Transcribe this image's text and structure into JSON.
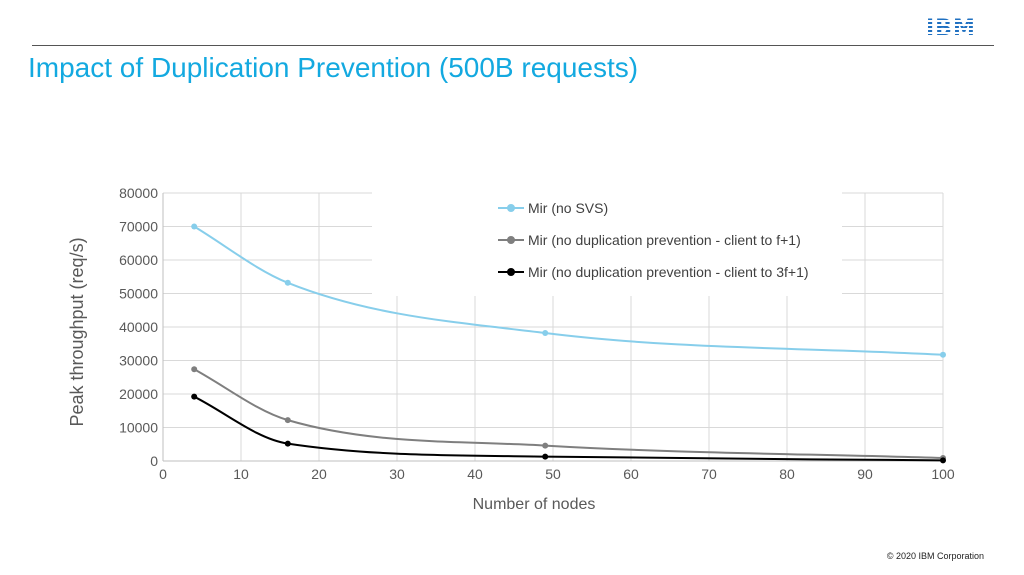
{
  "header": {
    "logo_text": "IBM",
    "title": "Impact of Duplication Prevention (500B requests)"
  },
  "footer": {
    "copyright": "© 2020 IBM Corporation"
  },
  "colors": {
    "title": "#13a9e0",
    "logo": "#1f70c1"
  },
  "chart_data": {
    "type": "line",
    "title": "",
    "xlabel": "Number of nodes",
    "ylabel": "Peak throughput (req/s)",
    "xlim": [
      0,
      100
    ],
    "ylim": [
      0,
      80000
    ],
    "x_ticks": [
      0,
      10,
      20,
      30,
      40,
      50,
      60,
      70,
      80,
      90,
      100
    ],
    "y_ticks": [
      0,
      10000,
      20000,
      30000,
      40000,
      50000,
      60000,
      70000,
      80000
    ],
    "grid": true,
    "legend_position": "top-right",
    "smooth": true,
    "series": [
      {
        "name": "Mir (no SVS)",
        "color": "#87ceeb",
        "x": [
          4,
          16,
          49,
          100
        ],
        "y": [
          70000,
          53200,
          38200,
          31700
        ]
      },
      {
        "name": "Mir (no duplication prevention - client to f+1)",
        "color": "#7f7f7f",
        "x": [
          4,
          16,
          49,
          100
        ],
        "y": [
          27400,
          12200,
          4600,
          900
        ]
      },
      {
        "name": "Mir (no duplication prevention - client to 3f+1)",
        "color": "#000000",
        "x": [
          4,
          16,
          49,
          100
        ],
        "y": [
          19200,
          5200,
          1300,
          200
        ]
      }
    ]
  }
}
